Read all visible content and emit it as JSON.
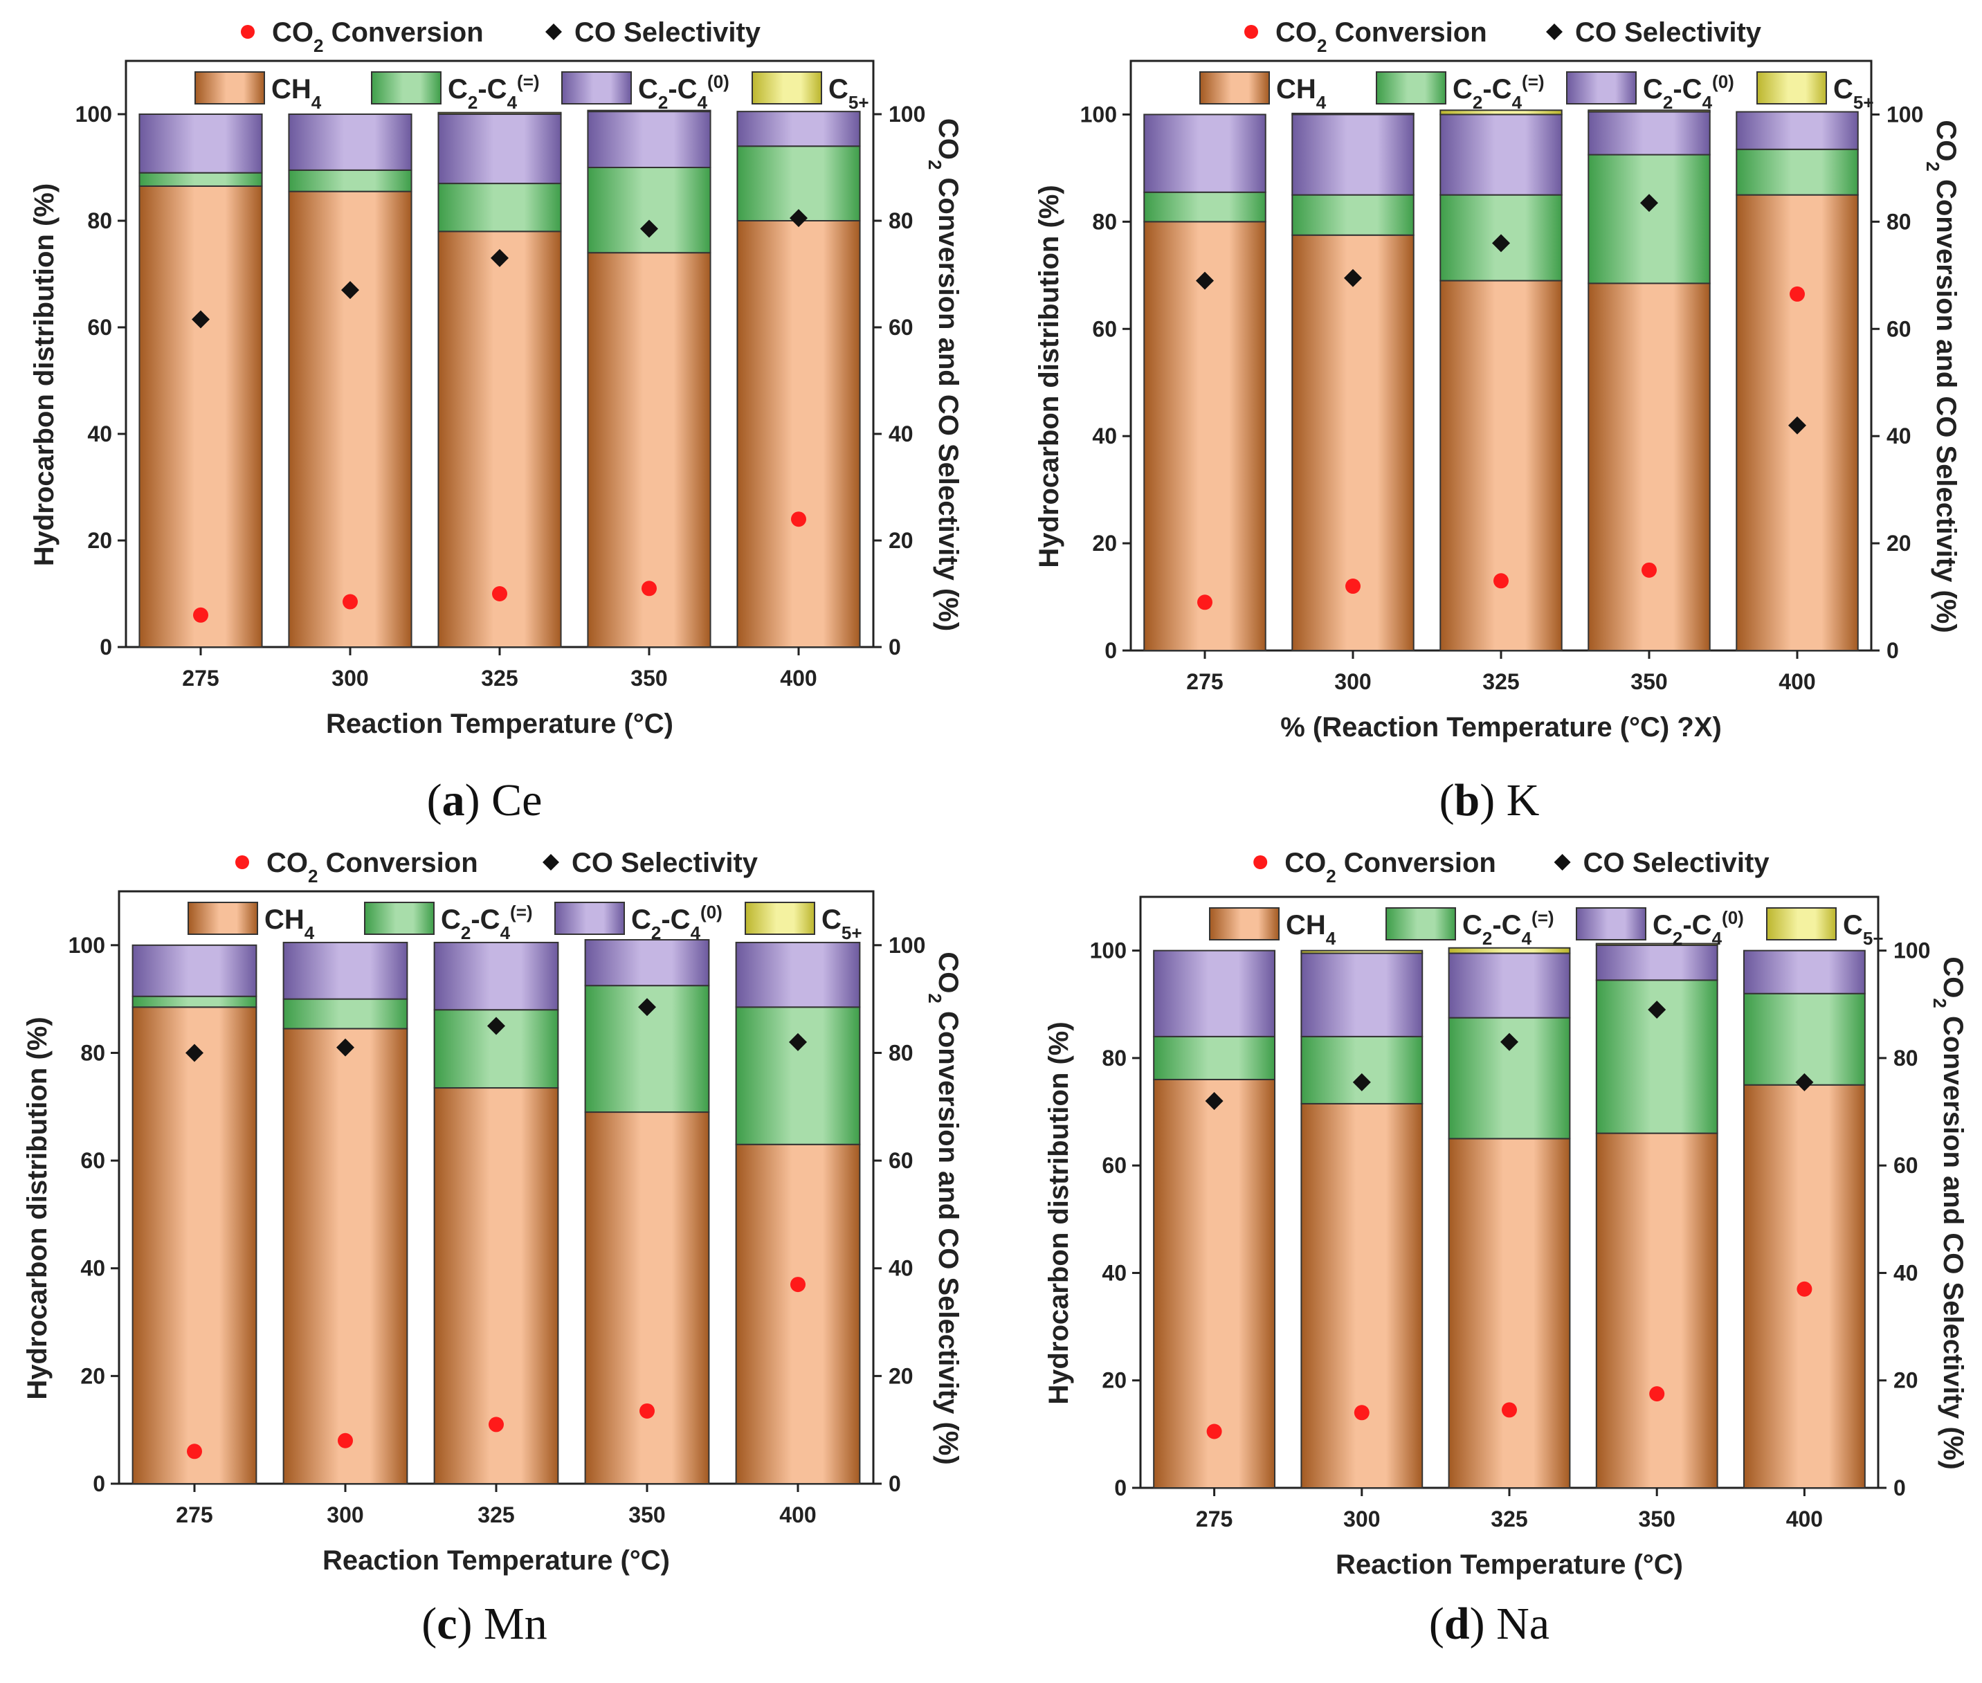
{
  "figure": {
    "captions": [
      {
        "letter": "a",
        "text": "Ce"
      },
      {
        "letter": "b",
        "text": "K"
      },
      {
        "letter": "c",
        "text": "Mn"
      },
      {
        "letter": "d",
        "text": "Na"
      }
    ]
  },
  "colors": {
    "ch4_light": "#f7c09a",
    "ch4_dark": "#a35a22",
    "c2c4_ene_light": "#a8ddaa",
    "c2c4_ene_dark": "#3f9e4a",
    "c2c4_ane_light": "#c5b6e3",
    "c2c4_ane_dark": "#6d5a9e",
    "c5_light": "#f4f2a0",
    "c5_dark": "#bcb62e",
    "conversion_marker": "#ff1a1a",
    "selectivity_marker": "#111111"
  },
  "chart_data": [
    {
      "type": "bar",
      "stacked": true,
      "panel": "a",
      "title": "Ce",
      "categories": [
        "275",
        "300",
        "325",
        "350",
        "400"
      ],
      "xlabel": "Reaction Temperature (°C)",
      "ylabel": "Hydrocarbon distribution (%)",
      "y2label": "CO2 Conversion and CO Selectivity (%)",
      "ylim": [
        0,
        110
      ],
      "y2lim": [
        0,
        110
      ],
      "yticks": [
        0,
        20,
        40,
        60,
        80,
        100
      ],
      "series": [
        {
          "name": "CH4",
          "values": [
            86.5,
            85.5,
            78,
            74,
            80
          ]
        },
        {
          "name": "C2-C4(=)",
          "values": [
            2.5,
            4,
            9,
            16,
            14
          ]
        },
        {
          "name": "C2-C4(0)",
          "values": [
            11,
            10.5,
            13,
            10.5,
            6.5
          ]
        },
        {
          "name": "C5+",
          "values": [
            0,
            0,
            0.3,
            0.2,
            0
          ]
        }
      ],
      "scatter": [
        {
          "name": "CO2 Conversion",
          "axis": "right",
          "values": [
            6,
            8.5,
            10,
            11,
            24
          ]
        },
        {
          "name": "CO Selectivity",
          "axis": "right",
          "values": [
            61.5,
            67,
            73,
            78.5,
            80.5
          ]
        }
      ]
    },
    {
      "type": "bar",
      "stacked": true,
      "panel": "b",
      "title": "K",
      "categories": [
        "275",
        "300",
        "325",
        "350",
        "400"
      ],
      "xlabel": "% (Reaction Temperature (°C) ?X)",
      "ylabel": "Hydrocarbon distribution (%)",
      "y2label": "CO2 Conversion and CO Selectivity (%)",
      "ylim": [
        0,
        110
      ],
      "y2lim": [
        0,
        110
      ],
      "yticks": [
        0,
        20,
        40,
        60,
        80,
        100
      ],
      "series": [
        {
          "name": "CH4",
          "values": [
            80,
            77.5,
            69,
            68.5,
            85
          ]
        },
        {
          "name": "C2-C4(=)",
          "values": [
            5.5,
            7.5,
            16,
            24,
            8.5
          ]
        },
        {
          "name": "C2-C4(0)",
          "values": [
            14.5,
            15,
            15,
            8,
            7
          ]
        },
        {
          "name": "C5+",
          "values": [
            0,
            0.2,
            0.8,
            0.3,
            0
          ]
        }
      ],
      "scatter": [
        {
          "name": "CO2 Conversion",
          "axis": "right",
          "values": [
            9,
            12,
            13,
            15,
            66.5
          ]
        },
        {
          "name": "CO Selectivity",
          "axis": "right",
          "values": [
            69,
            69.5,
            76,
            83.5,
            42
          ]
        }
      ]
    },
    {
      "type": "bar",
      "stacked": true,
      "panel": "c",
      "title": "Mn",
      "categories": [
        "275",
        "300",
        "325",
        "350",
        "400"
      ],
      "xlabel": "Reaction Temperature (°C)",
      "ylabel": "Hydrocarbon distribution (%)",
      "y2label": "CO2 Conversion and CO Selectivity (%)",
      "ylim": [
        0,
        110
      ],
      "y2lim": [
        0,
        110
      ],
      "yticks": [
        0,
        20,
        40,
        60,
        80,
        100
      ],
      "series": [
        {
          "name": "CH4",
          "values": [
            88.5,
            84.5,
            73.5,
            69,
            63
          ]
        },
        {
          "name": "C2-C4(=)",
          "values": [
            2,
            5.5,
            14.5,
            23.5,
            25.5
          ]
        },
        {
          "name": "C2-C4(0)",
          "values": [
            9.5,
            10.5,
            12.5,
            8.5,
            12
          ]
        },
        {
          "name": "C5+",
          "values": [
            0,
            0,
            0,
            0,
            0
          ]
        }
      ],
      "scatter": [
        {
          "name": "CO2 Conversion",
          "axis": "right",
          "values": [
            6,
            8,
            11,
            13.5,
            37
          ]
        },
        {
          "name": "CO Selectivity",
          "axis": "right",
          "values": [
            80,
            81,
            85,
            88.5,
            82
          ]
        }
      ]
    },
    {
      "type": "bar",
      "stacked": true,
      "panel": "d",
      "title": "Na",
      "categories": [
        "275",
        "300",
        "325",
        "350",
        "400"
      ],
      "xlabel": "Reaction Temperature (°C)",
      "ylabel": "Hydrocarbon distribution (%)",
      "y2label": "CO2 Conversion and CO Selectivity (%)",
      "ylim": [
        0,
        110
      ],
      "y2lim": [
        0,
        110
      ],
      "yticks": [
        0,
        20,
        40,
        60,
        80,
        100
      ],
      "series": [
        {
          "name": "CH4",
          "values": [
            76,
            71.5,
            65,
            66,
            75
          ]
        },
        {
          "name": "C2-C4(=)",
          "values": [
            8,
            12.5,
            22.5,
            28.5,
            17
          ]
        },
        {
          "name": "C2-C4(0)",
          "values": [
            16,
            15.5,
            12,
            6.5,
            8
          ]
        },
        {
          "name": "C5+",
          "values": [
            0,
            0.5,
            1,
            0.3,
            0
          ]
        }
      ],
      "scatter": [
        {
          "name": "CO2 Conversion",
          "axis": "right",
          "values": [
            10.5,
            14,
            14.5,
            17.5,
            37
          ]
        },
        {
          "name": "CO Selectivity",
          "axis": "right",
          "values": [
            72,
            75.5,
            83,
            89,
            75.5
          ]
        }
      ]
    }
  ]
}
